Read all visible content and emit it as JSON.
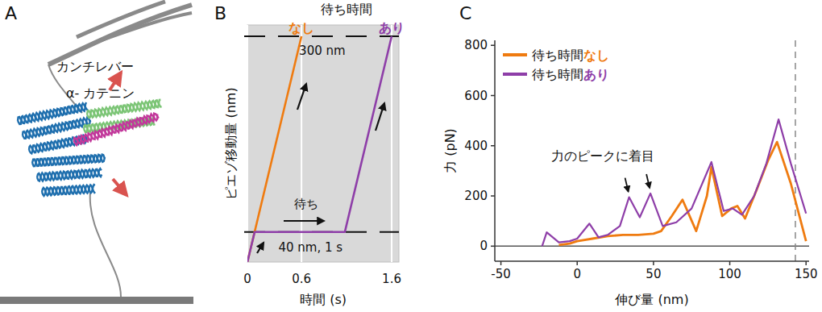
{
  "diagram": {
    "panel_label": "A",
    "cantilever_label": "カンチレバー",
    "protein_label": "α- カテニン"
  },
  "chart_data": [
    {
      "type": "line",
      "panel_label": "B",
      "title": "待ち時間",
      "x_label": "時間 (s)",
      "y_label": "ピエゾ移動量 (nm)",
      "xlim": [
        0,
        1.68
      ],
      "xticks": [
        0,
        0.6,
        1.6
      ],
      "ylim": [
        0,
        315
      ],
      "yticks": [
        40,
        300
      ],
      "tick_labels": "x",
      "grid": true,
      "legend": "top",
      "series": [
        {
          "name": "なし",
          "color": "#ef7b10",
          "x": [
            0,
            0.6
          ],
          "values": [
            0,
            300
          ]
        },
        {
          "name": "あり",
          "color": "#8e3ea8",
          "x": [
            0,
            0.08,
            1.08,
            1.6
          ],
          "values": [
            0,
            40,
            40,
            300
          ]
        }
      ],
      "annotations": [
        {
          "text": "300 nm",
          "x": 0.83,
          "y": 275
        },
        {
          "text": "40 nm, 1 s",
          "x": 0.7,
          "y": 14
        },
        {
          "text": "待ち",
          "x": 0.65,
          "y": 72
        }
      ]
    },
    {
      "type": "line",
      "panel_label": "C",
      "x_label": "伸び量 (nm)",
      "y_label": "力 (pN)",
      "xlim": [
        -54,
        152
      ],
      "xticks": [
        -50,
        0,
        50,
        100,
        150
      ],
      "ylim": [
        -60,
        820
      ],
      "yticks": [
        0,
        200,
        400,
        600,
        800
      ],
      "legend": "upper left",
      "hlines": [
        0
      ],
      "vlines": [
        143
      ],
      "series": [
        {
          "name": "待ち時間なし",
          "color": "#ef7b10",
          "x": [
            -12,
            -5,
            0,
            10,
            20,
            30,
            40,
            50,
            55,
            62,
            69,
            78,
            85,
            88,
            95,
            101,
            105,
            110,
            118,
            125,
            131,
            140,
            150
          ],
          "values": [
            5,
            10,
            20,
            30,
            40,
            45,
            45,
            50,
            60,
            120,
            185,
            60,
            200,
            315,
            120,
            150,
            160,
            110,
            230,
            340,
            415,
            250,
            20
          ]
        },
        {
          "name": "待ち時間あり",
          "color": "#8e3ea8",
          "x": [
            -23,
            -20,
            -12,
            -5,
            0,
            8,
            14,
            20,
            28,
            34,
            41,
            48,
            56,
            65,
            75,
            88,
            96,
            102,
            108,
            116,
            124,
            132,
            140,
            150
          ],
          "values": [
            0,
            55,
            15,
            20,
            30,
            90,
            35,
            45,
            80,
            195,
            115,
            210,
            80,
            95,
            150,
            335,
            140,
            150,
            125,
            200,
            330,
            505,
            330,
            130
          ]
        }
      ],
      "annotations": [
        {
          "text": "力のピークに着目",
          "x": 17,
          "y": 340,
          "arrows": [
            [
              34,
              195
            ],
            [
              48,
              210
            ]
          ]
        }
      ]
    }
  ]
}
